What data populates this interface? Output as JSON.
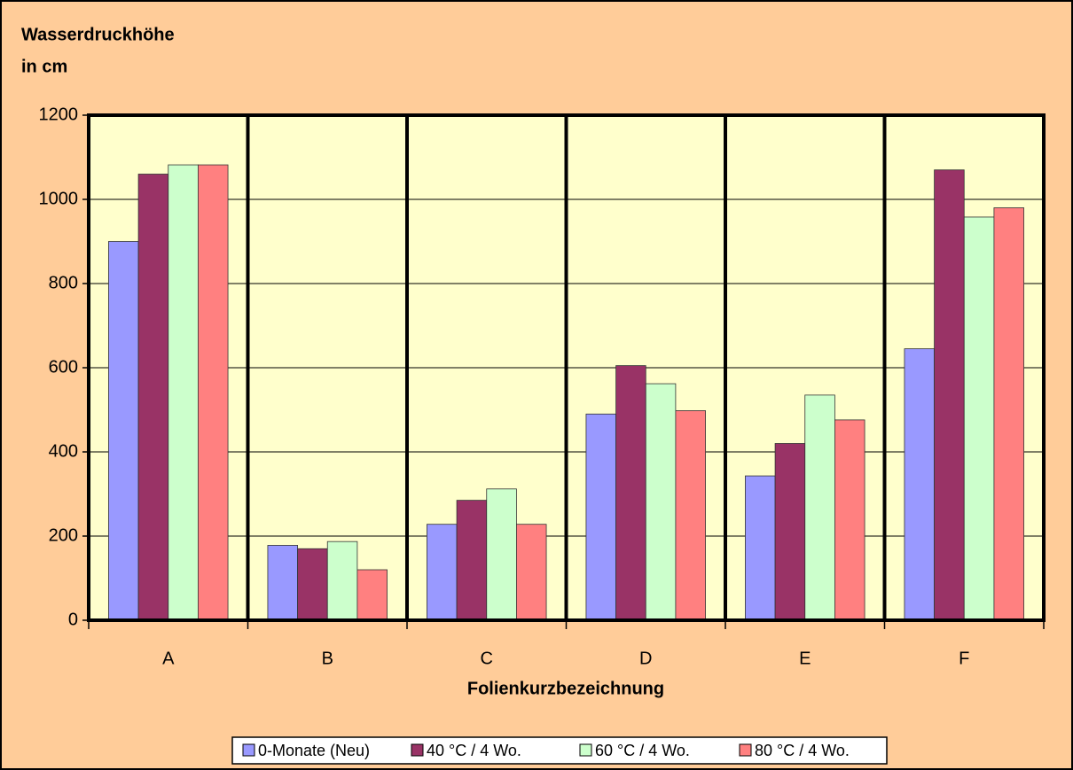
{
  "chart_data": {
    "type": "bar",
    "ylabel": [
      "Wasserdruckhöhe",
      "in cm"
    ],
    "xlabel": "Folienkurzbezeichnung",
    "categories": [
      "A",
      "B",
      "C",
      "D",
      "E",
      "F"
    ],
    "series": [
      {
        "name": "0-Monate (Neu)",
        "color": "#9999ff",
        "values": [
          900,
          178,
          228,
          490,
          343,
          645
        ]
      },
      {
        "name": "40 °C / 4 Wo.",
        "color": "#993366",
        "values": [
          1060,
          170,
          285,
          605,
          420,
          1070
        ]
      },
      {
        "name": "60 °C / 4 Wo.",
        "color": "#ccffcc",
        "values": [
          1082,
          187,
          312,
          562,
          535,
          958
        ]
      },
      {
        "name": "80 °C / 4 Wo.",
        "color": "#ff8080",
        "values": [
          1082,
          120,
          228,
          498,
          476,
          980
        ]
      }
    ],
    "ylim": [
      0,
      1200
    ],
    "yticks": [
      0,
      200,
      400,
      600,
      800,
      1000,
      1200
    ],
    "grid": true,
    "category_dividers": true,
    "legend": "bottom"
  }
}
